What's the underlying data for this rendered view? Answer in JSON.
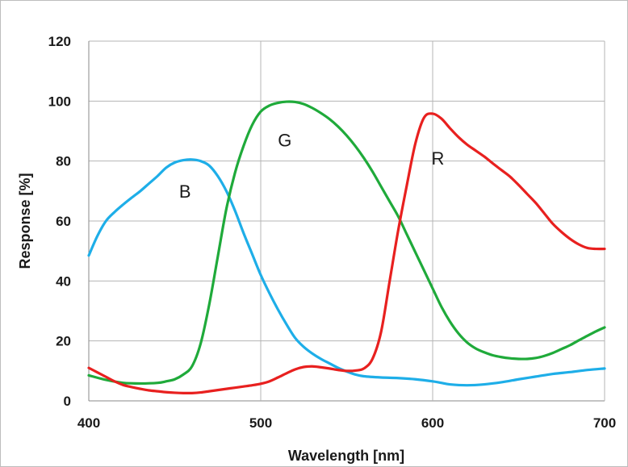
{
  "chart_data": {
    "type": "line",
    "title": "",
    "xlabel": "Wavelength [nm]",
    "ylabel": "Response [%]",
    "xlim": [
      400,
      700
    ],
    "ylim": [
      0,
      120
    ],
    "x_ticks": [
      400,
      500,
      600,
      700
    ],
    "y_ticks": [
      0,
      20,
      40,
      60,
      80,
      100,
      120
    ],
    "grid": true,
    "legend": "none",
    "series": [
      {
        "name": "B",
        "color": "#1eaee8",
        "points": [
          [
            400,
            48.5
          ],
          [
            405,
            55
          ],
          [
            410,
            60
          ],
          [
            415,
            63
          ],
          [
            420,
            65.5
          ],
          [
            425,
            67.8
          ],
          [
            430,
            70
          ],
          [
            435,
            72.5
          ],
          [
            440,
            75
          ],
          [
            445,
            77.8
          ],
          [
            450,
            79.5
          ],
          [
            455,
            80.3
          ],
          [
            460,
            80.5
          ],
          [
            465,
            80
          ],
          [
            470,
            78.5
          ],
          [
            475,
            75
          ],
          [
            480,
            70
          ],
          [
            485,
            63.5
          ],
          [
            490,
            56
          ],
          [
            495,
            49
          ],
          [
            500,
            42
          ],
          [
            505,
            36
          ],
          [
            510,
            30.5
          ],
          [
            515,
            25.5
          ],
          [
            520,
            21
          ],
          [
            525,
            18
          ],
          [
            530,
            15.8
          ],
          [
            535,
            14
          ],
          [
            540,
            12.5
          ],
          [
            545,
            11
          ],
          [
            550,
            9.8
          ],
          [
            555,
            8.8
          ],
          [
            560,
            8.2
          ],
          [
            570,
            7.8
          ],
          [
            580,
            7.6
          ],
          [
            590,
            7.2
          ],
          [
            600,
            6.5
          ],
          [
            605,
            6
          ],
          [
            610,
            5.5
          ],
          [
            620,
            5.2
          ],
          [
            630,
            5.5
          ],
          [
            640,
            6.2
          ],
          [
            650,
            7.2
          ],
          [
            660,
            8.1
          ],
          [
            670,
            9
          ],
          [
            680,
            9.6
          ],
          [
            690,
            10.3
          ],
          [
            700,
            10.8
          ]
        ]
      },
      {
        "name": "G",
        "color": "#1faa3a",
        "points": [
          [
            400,
            8.5
          ],
          [
            410,
            7
          ],
          [
            420,
            6
          ],
          [
            430,
            5.8
          ],
          [
            440,
            6
          ],
          [
            445,
            6.5
          ],
          [
            450,
            7.2
          ],
          [
            455,
            8.8
          ],
          [
            460,
            11.5
          ],
          [
            465,
            19
          ],
          [
            470,
            32
          ],
          [
            475,
            48
          ],
          [
            480,
            64
          ],
          [
            485,
            76
          ],
          [
            490,
            85
          ],
          [
            495,
            92
          ],
          [
            500,
            96.5
          ],
          [
            505,
            98.5
          ],
          [
            510,
            99.4
          ],
          [
            515,
            99.8
          ],
          [
            520,
            99.7
          ],
          [
            525,
            99
          ],
          [
            530,
            97.7
          ],
          [
            535,
            96
          ],
          [
            540,
            94
          ],
          [
            545,
            91.5
          ],
          [
            550,
            88.5
          ],
          [
            555,
            85
          ],
          [
            560,
            81
          ],
          [
            565,
            76.5
          ],
          [
            570,
            71.5
          ],
          [
            575,
            66.5
          ],
          [
            580,
            61.5
          ],
          [
            585,
            55.5
          ],
          [
            590,
            49.5
          ],
          [
            595,
            43.5
          ],
          [
            600,
            37.5
          ],
          [
            605,
            31.5
          ],
          [
            610,
            26.5
          ],
          [
            615,
            22.5
          ],
          [
            620,
            19.5
          ],
          [
            625,
            17.5
          ],
          [
            630,
            16.2
          ],
          [
            635,
            15.2
          ],
          [
            640,
            14.6
          ],
          [
            645,
            14.2
          ],
          [
            650,
            14
          ],
          [
            655,
            14
          ],
          [
            660,
            14.3
          ],
          [
            665,
            15
          ],
          [
            670,
            16
          ],
          [
            675,
            17.3
          ],
          [
            680,
            18.6
          ],
          [
            685,
            20.2
          ],
          [
            690,
            21.7
          ],
          [
            695,
            23.2
          ],
          [
            700,
            24.5
          ]
        ]
      },
      {
        "name": "R",
        "color": "#e8201f",
        "points": [
          [
            400,
            11
          ],
          [
            405,
            9.5
          ],
          [
            410,
            8
          ],
          [
            415,
            6.5
          ],
          [
            420,
            5.3
          ],
          [
            425,
            4.6
          ],
          [
            430,
            4
          ],
          [
            435,
            3.5
          ],
          [
            440,
            3.2
          ],
          [
            445,
            2.9
          ],
          [
            450,
            2.7
          ],
          [
            455,
            2.6
          ],
          [
            460,
            2.6
          ],
          [
            465,
            2.8
          ],
          [
            470,
            3.2
          ],
          [
            475,
            3.6
          ],
          [
            480,
            4
          ],
          [
            485,
            4.4
          ],
          [
            490,
            4.8
          ],
          [
            495,
            5.2
          ],
          [
            500,
            5.7
          ],
          [
            505,
            6.5
          ],
          [
            510,
            7.8
          ],
          [
            515,
            9.2
          ],
          [
            520,
            10.5
          ],
          [
            525,
            11.3
          ],
          [
            530,
            11.5
          ],
          [
            535,
            11.2
          ],
          [
            540,
            10.8
          ],
          [
            545,
            10.3
          ],
          [
            550,
            10
          ],
          [
            555,
            10.1
          ],
          [
            560,
            10.8
          ],
          [
            565,
            14
          ],
          [
            570,
            23
          ],
          [
            575,
            40
          ],
          [
            580,
            57
          ],
          [
            585,
            72
          ],
          [
            590,
            86
          ],
          [
            595,
            94.5
          ],
          [
            600,
            95.8
          ],
          [
            605,
            94.2
          ],
          [
            610,
            91
          ],
          [
            615,
            88
          ],
          [
            620,
            85.5
          ],
          [
            625,
            83.5
          ],
          [
            630,
            81.5
          ],
          [
            635,
            79.2
          ],
          [
            640,
            77
          ],
          [
            645,
            74.8
          ],
          [
            650,
            72
          ],
          [
            655,
            69
          ],
          [
            660,
            66
          ],
          [
            665,
            62.5
          ],
          [
            670,
            59
          ],
          [
            675,
            56.3
          ],
          [
            680,
            54
          ],
          [
            685,
            52.2
          ],
          [
            690,
            51
          ],
          [
            695,
            50.7
          ],
          [
            700,
            50.7
          ]
        ]
      }
    ],
    "annotations": [
      {
        "text": "B",
        "x": 456,
        "y": 70
      },
      {
        "text": "G",
        "x": 514,
        "y": 87
      },
      {
        "text": "R",
        "x": 603,
        "y": 81
      }
    ]
  }
}
